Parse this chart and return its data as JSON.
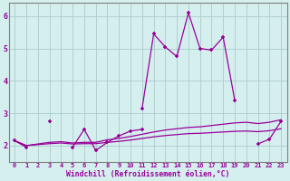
{
  "x": [
    0,
    1,
    2,
    3,
    4,
    5,
    6,
    7,
    8,
    9,
    10,
    11,
    12,
    13,
    14,
    15,
    16,
    17,
    18,
    19,
    20,
    21,
    22,
    23
  ],
  "line_spiky": [
    null,
    null,
    null,
    null,
    null,
    null,
    null,
    null,
    null,
    null,
    null,
    3.15,
    5.45,
    5.05,
    4.75,
    6.1,
    5.0,
    4.95,
    5.35,
    3.4,
    null,
    null,
    null,
    null
  ],
  "line_dashed_upper": [
    2.15,
    1.95,
    null,
    2.75,
    null,
    1.95,
    null,
    null,
    null,
    null,
    null,
    null,
    null,
    null,
    null,
    null,
    null,
    null,
    null,
    3.4,
    null,
    null,
    null,
    null
  ],
  "line_zigzag": [
    2.15,
    1.95,
    null,
    2.75,
    null,
    1.95,
    2.5,
    1.85,
    2.1,
    2.3,
    2.45,
    2.5,
    null,
    null,
    null,
    null,
    null,
    null,
    null,
    null,
    null,
    2.05,
    2.2,
    2.75
  ],
  "line_trend_upper": [
    2.15,
    2.0,
    2.05,
    2.1,
    2.12,
    2.08,
    2.1,
    2.1,
    2.18,
    2.22,
    2.28,
    2.35,
    2.42,
    2.48,
    2.52,
    2.56,
    2.58,
    2.62,
    2.66,
    2.7,
    2.72,
    2.68,
    2.72,
    2.8
  ],
  "line_trend_lower": [
    2.15,
    2.0,
    2.03,
    2.06,
    2.08,
    2.05,
    2.06,
    2.06,
    2.1,
    2.13,
    2.17,
    2.22,
    2.27,
    2.31,
    2.34,
    2.37,
    2.38,
    2.4,
    2.42,
    2.44,
    2.45,
    2.43,
    2.46,
    2.52
  ],
  "color": "#990099",
  "bg_color": "#d5eeee",
  "grid_color": "#aacccc",
  "ylabel_vals": [
    2,
    3,
    4,
    5,
    6
  ],
  "xlabel": "Windchill (Refroidissement éolien,°C)",
  "ylim": [
    1.5,
    6.4
  ],
  "xlim": [
    -0.5,
    23.5
  ]
}
